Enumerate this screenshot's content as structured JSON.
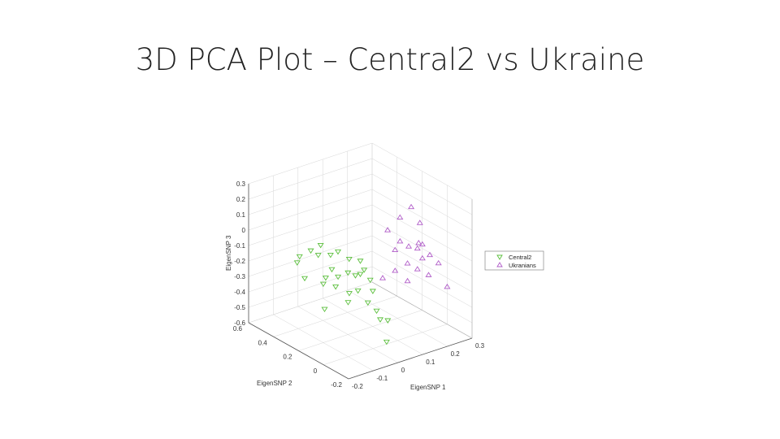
{
  "slide": {
    "title": "3D PCA Plot – Central2 vs Ukraine"
  },
  "chart_data": {
    "type": "scatter",
    "projection": "3d",
    "xlabel": "EigenSNP 1",
    "ylabel": "EigenSNP 2",
    "zlabel": "EigenSNP 3",
    "xticks": [
      "-0.2",
      "-0.1",
      "0",
      "0.1",
      "0.2",
      "0.3"
    ],
    "yticks": [
      "-0.2",
      "0",
      "0.2",
      "0.4",
      "0.6"
    ],
    "zticks": [
      "0.3",
      "0.2",
      "0.1",
      "0",
      "-0.1",
      "-0.2",
      "-0.3",
      "-0.4",
      "-0.5",
      "-0.6"
    ],
    "xlim": [
      -0.2,
      0.3
    ],
    "ylim": [
      -0.2,
      0.6
    ],
    "zlim": [
      -0.6,
      0.3
    ],
    "grid": true,
    "legend_position": "right",
    "series": [
      {
        "name": "Central2",
        "marker": "triangle-down",
        "color": "#5bbf3c",
        "points": [
          [
            -0.1,
            0.3,
            -0.05
          ],
          [
            -0.12,
            0.35,
            -0.1
          ],
          [
            -0.14,
            0.33,
            -0.12
          ],
          [
            -0.08,
            0.28,
            -0.08
          ],
          [
            -0.05,
            0.32,
            -0.05
          ],
          [
            -0.02,
            0.3,
            -0.12
          ],
          [
            0.0,
            0.28,
            -0.1
          ],
          [
            -0.04,
            0.25,
            -0.18
          ],
          [
            -0.08,
            0.22,
            -0.2
          ],
          [
            -0.1,
            0.2,
            -0.22
          ],
          [
            -0.06,
            0.18,
            -0.25
          ],
          [
            -0.03,
            0.22,
            -0.22
          ],
          [
            0.0,
            0.2,
            -0.2
          ],
          [
            0.02,
            0.18,
            -0.22
          ],
          [
            0.04,
            0.15,
            -0.18
          ],
          [
            0.05,
            0.2,
            -0.15
          ],
          [
            0.03,
            0.25,
            -0.15
          ],
          [
            0.06,
            0.22,
            -0.25
          ],
          [
            0.08,
            0.18,
            -0.28
          ],
          [
            -0.02,
            0.15,
            -0.3
          ],
          [
            0.0,
            0.12,
            -0.28
          ],
          [
            -0.05,
            0.1,
            -0.32
          ],
          [
            0.02,
            0.08,
            -0.35
          ],
          [
            0.05,
            0.1,
            -0.3
          ],
          [
            -0.12,
            0.15,
            -0.35
          ],
          [
            0.04,
            0.05,
            -0.4
          ],
          [
            0.06,
            0.0,
            -0.45
          ],
          [
            0.03,
            -0.05,
            -0.55
          ],
          [
            0.08,
            0.1,
            -0.5
          ],
          [
            -0.15,
            0.25,
            -0.18
          ]
        ]
      },
      {
        "name": "Ukranians",
        "marker": "triangle-up",
        "color": "#b05cc8",
        "points": [
          [
            0.18,
            0.05,
            0.2
          ],
          [
            0.16,
            0.1,
            0.12
          ],
          [
            0.2,
            0.02,
            0.1
          ],
          [
            0.12,
            0.12,
            0.05
          ],
          [
            0.15,
            0.08,
            -0.02
          ],
          [
            0.17,
            0.05,
            -0.05
          ],
          [
            0.19,
            0.02,
            -0.06
          ],
          [
            0.14,
            0.1,
            -0.08
          ],
          [
            0.2,
            0.0,
            -0.12
          ],
          [
            0.22,
            -0.02,
            -0.1
          ],
          [
            0.16,
            0.04,
            -0.15
          ],
          [
            0.18,
            0.0,
            -0.18
          ],
          [
            0.13,
            0.08,
            -0.2
          ],
          [
            0.24,
            -0.05,
            -0.15
          ],
          [
            0.21,
            -0.03,
            -0.22
          ],
          [
            0.15,
            0.02,
            -0.25
          ],
          [
            0.26,
            -0.08,
            -0.3
          ],
          [
            0.1,
            0.12,
            -0.25
          ],
          [
            0.19,
            0.01,
            -0.02
          ],
          [
            0.2,
            0.0,
            -0.03
          ]
        ]
      }
    ]
  }
}
